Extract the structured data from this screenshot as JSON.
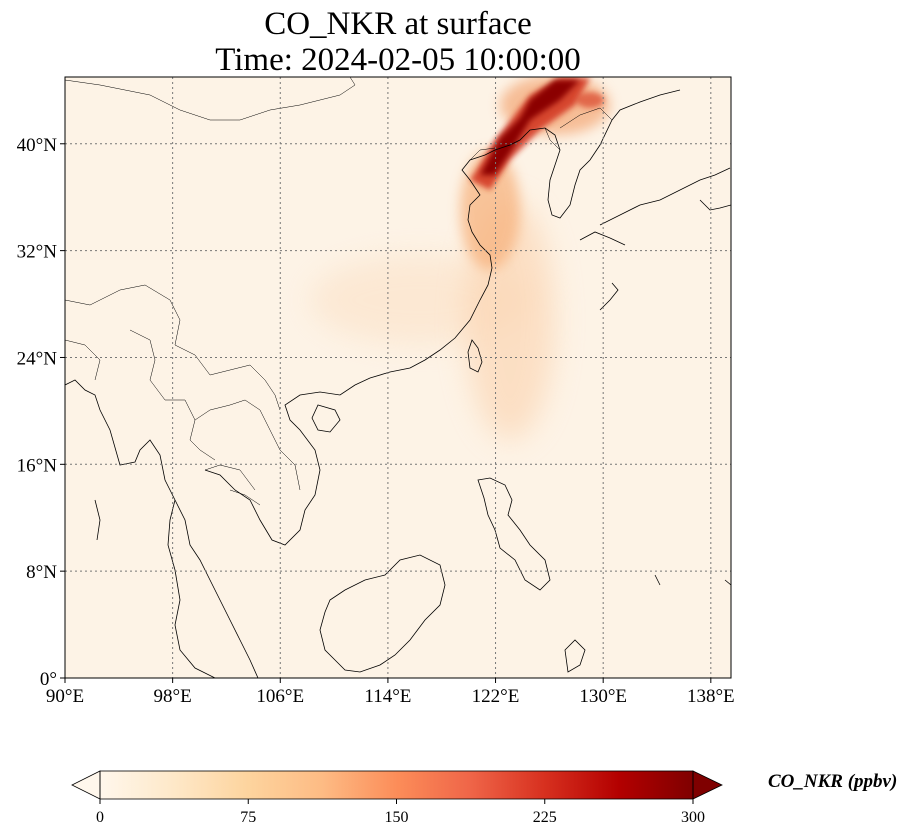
{
  "title": "CO_NKR at surface",
  "subtitle": "Time: 2024-02-05 10:00:00",
  "axes": {
    "lon_ticks": [
      "90°E",
      "98°E",
      "106°E",
      "114°E",
      "122°E",
      "130°E",
      "138°E"
    ],
    "lat_ticks": [
      "0°",
      "8°N",
      "16°N",
      "24°N",
      "32°N",
      "40°N"
    ],
    "lon_range": [
      90,
      139.5
    ],
    "lat_range": [
      0,
      45
    ],
    "gridlines": "dotted"
  },
  "colorbar": {
    "label": "CO_NKR (ppbv)",
    "ticks": [
      "0",
      "75",
      "150",
      "225",
      "300"
    ],
    "range": [
      0,
      300
    ],
    "extend": "both",
    "colormap": "OrRd",
    "colors": [
      "#fff7ec",
      "#fee8c8",
      "#fdd49e",
      "#fdbb84",
      "#fc8d59",
      "#ef6548",
      "#d7301f",
      "#b30000",
      "#7f0000"
    ]
  },
  "field": {
    "background": "#fdf3e6",
    "plume_colors": {
      "high": "#8b0000",
      "mid": "#c8281a",
      "low": "#f5b27e",
      "faint": "#fbdcbe"
    }
  }
}
